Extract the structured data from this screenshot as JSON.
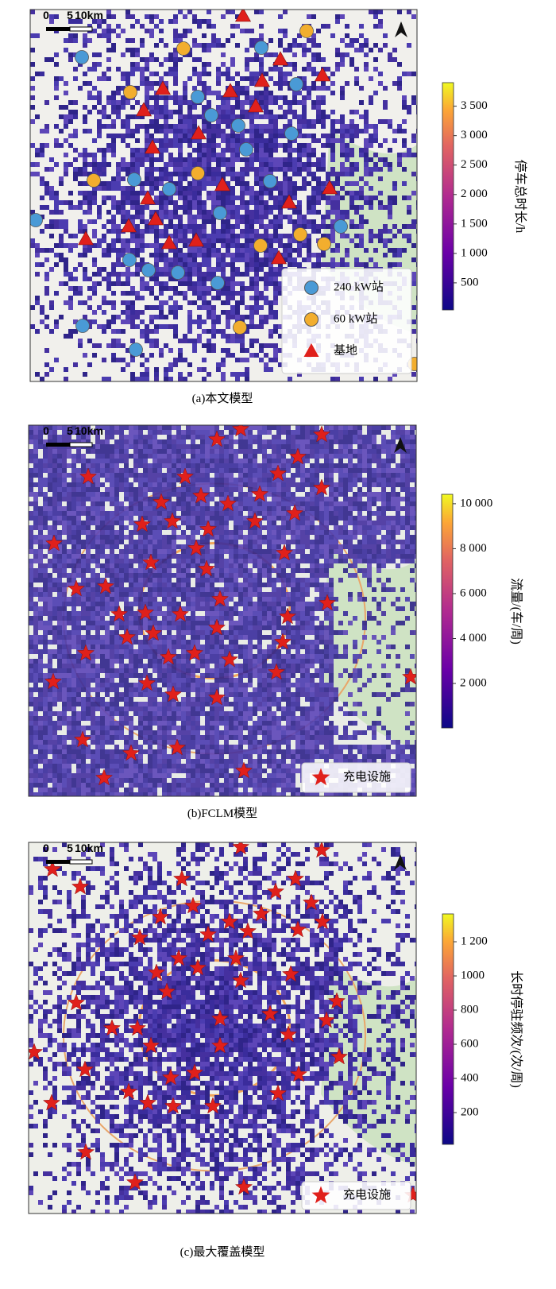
{
  "panels": [
    {
      "caption": "(a)本文模型",
      "scale_labels": [
        "0",
        "5",
        "10km"
      ],
      "legend": [
        "240 kW站",
        "60 kW站",
        "基地"
      ],
      "colorbar": {
        "title": "停车总时长/h",
        "lim": [
          40,
          3900
        ],
        "ticks": [
          500,
          {
            "value": 1000,
            "label": "1 000"
          },
          {
            "value": 1500,
            "label": "1 500"
          },
          {
            "value": 2000,
            "label": "2 000"
          },
          {
            "value": 2500,
            "label": "2 500"
          },
          {
            "value": 3000,
            "label": "3 000"
          },
          {
            "value": 3500,
            "label": "3 500"
          }
        ]
      }
    },
    {
      "caption": "(b)FCLM模型",
      "scale_labels": [
        "0",
        "5",
        "10km"
      ],
      "legend": [
        "充电设施"
      ],
      "colorbar": {
        "title": "流量/(车/周)",
        "lim": [
          20,
          10420
        ],
        "ticks": [
          {
            "value": 2000,
            "label": "2 000"
          },
          {
            "value": 4000,
            "label": "4 000"
          },
          {
            "value": 6000,
            "label": "6 000"
          },
          {
            "value": 8000,
            "label": "8 000"
          },
          {
            "value": 10000,
            "label": "10 000"
          }
        ]
      }
    },
    {
      "caption": "(c)最大覆盖模型",
      "scale_labels": [
        "0",
        "5",
        "10km"
      ],
      "legend": [
        "充电设施"
      ],
      "colorbar": {
        "title": "长时停驻频次/(次/周)",
        "lim": [
          14,
          1363
        ],
        "ticks": [
          200,
          400,
          600,
          800,
          1000,
          {
            "value": 1200,
            "label": "1 200"
          }
        ]
      }
    }
  ]
}
